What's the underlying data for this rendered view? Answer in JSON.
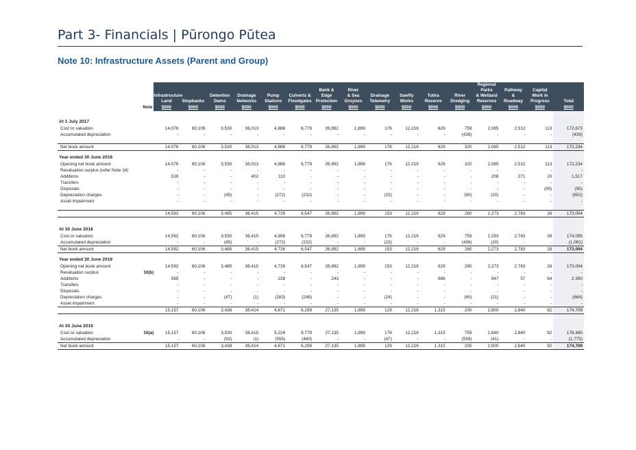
{
  "page": {
    "title": "Part 3- Financials | Pūrongo Pūtea",
    "note_title": "Note 10:  Infrastructure Assets (Parent and Group)"
  },
  "table": {
    "note_header": "Note",
    "columns": [
      {
        "lines": [
          "Infrastructure",
          "Land"
        ],
        "unit": "$000"
      },
      {
        "lines": [
          "Stopbanks"
        ],
        "unit": "$000"
      },
      {
        "lines": [
          "Detention",
          "Dams"
        ],
        "unit": "$000"
      },
      {
        "lines": [
          "Drainage",
          "Networks"
        ],
        "unit": "$000"
      },
      {
        "lines": [
          "Pump",
          "Stations"
        ],
        "unit": "$000"
      },
      {
        "lines": [
          "Culverts &",
          "Floodgates"
        ],
        "unit": "$000"
      },
      {
        "lines": [
          "Bank &",
          "Edge",
          "Protection"
        ],
        "unit": "$000"
      },
      {
        "lines": [
          "River",
          "& Sea",
          "Groynes"
        ],
        "unit": "$000"
      },
      {
        "lines": [
          "Drainage",
          "Telemetry"
        ],
        "unit": "$000"
      },
      {
        "lines": [
          "Sawfly",
          "Works"
        ],
        "unit": "$000"
      },
      {
        "lines": [
          "Tutira",
          "Reserve"
        ],
        "unit": "$000"
      },
      {
        "lines": [
          "River",
          "Dredging"
        ],
        "unit": "$000"
      },
      {
        "lines": [
          "Regional Parks",
          "& Wetland",
          "Reserves"
        ],
        "unit": "$000"
      },
      {
        "lines": [
          "Pathway",
          "&",
          "Roadway"
        ],
        "unit": "$000"
      },
      {
        "lines": [
          "Capital",
          "Work in",
          "Progress"
        ],
        "unit": "$000"
      },
      {
        "lines": [
          "Total"
        ],
        "unit": "$000"
      }
    ],
    "rows": [
      {
        "type": "section",
        "label": "At 1 July 2017"
      },
      {
        "type": "data",
        "label": "Cost or valuation",
        "note": "",
        "values": [
          "14,076",
          "60,106",
          "3,530",
          "36,013",
          "4,888",
          "6,779",
          "26,892",
          "1,899",
          "176",
          "12,216",
          "629",
          "759",
          "2,085",
          "2,512",
          "113",
          "172,673"
        ]
      },
      {
        "type": "data",
        "label": "Accumulated depreciation",
        "note": "",
        "values": [
          "-",
          "-",
          "-",
          "-",
          "-",
          "-",
          "-",
          "-",
          "-",
          "-",
          "-",
          "(439)",
          "-",
          "-",
          "-",
          "(439)"
        ]
      },
      {
        "type": "spacer"
      },
      {
        "type": "total",
        "label": "Net book amount",
        "note": "",
        "values": [
          "14,076",
          "60,106",
          "3,530",
          "36,013",
          "4,888",
          "6,779",
          "26,892",
          "1,899",
          "176",
          "12,216",
          "629",
          "320",
          "2,085",
          "2,512",
          "113",
          "172,234"
        ]
      },
      {
        "type": "section",
        "label": "Year ended 30 June 2018"
      },
      {
        "type": "data",
        "label": "Opening net book amount",
        "note": "",
        "values": [
          "14,076",
          "60,106",
          "3,530",
          "36,013",
          "4,888",
          "6,779",
          "26,892",
          "1,899",
          "176",
          "12,216",
          "629",
          "320",
          "2,085",
          "2,512",
          "113",
          "172,234"
        ]
      },
      {
        "type": "data",
        "label": "Revaluation surplus (refer Note 18)",
        "note": "",
        "values": [
          "-",
          "-",
          "-",
          "-",
          "-",
          "-",
          "-",
          "-",
          "-",
          "-",
          "-",
          "-",
          "-",
          "-",
          "-",
          "-"
        ]
      },
      {
        "type": "data",
        "label": "Additions",
        "note": "",
        "values": [
          "516",
          "-",
          "-",
          "402",
          "110",
          "-",
          "-",
          "-",
          "-",
          "-",
          "-",
          "-",
          "208",
          "271",
          "10",
          "1,517"
        ]
      },
      {
        "type": "data",
        "label": "Transfers",
        "note": "",
        "values": [
          "-",
          "-",
          "-",
          "-",
          "-",
          "-",
          "-",
          "-",
          "-",
          "-",
          "-",
          "-",
          "-",
          "-",
          "-",
          "-"
        ]
      },
      {
        "type": "data",
        "label": "Disposals",
        "note": "",
        "values": [
          "-",
          "-",
          "-",
          "-",
          "-",
          "-",
          "-",
          "-",
          "-",
          "-",
          "-",
          "-",
          "-",
          "-",
          "(95)",
          "(95)"
        ]
      },
      {
        "type": "data",
        "label": "Depreciation charges",
        "note": "",
        "values": [
          "-",
          "-",
          "(45)",
          "-",
          "(272)",
          "(232)",
          "-",
          "-",
          "(23)",
          "-",
          "-",
          "(60)",
          "(20)",
          "-",
          "-",
          "(652)"
        ]
      },
      {
        "type": "data",
        "label": "Asset impairment",
        "note": "",
        "values": [
          "-",
          "-",
          "-",
          "-",
          "-",
          "-",
          "-",
          "-",
          "-",
          "-",
          "-",
          "-",
          "-",
          "-",
          "-",
          "-"
        ]
      },
      {
        "type": "spacer"
      },
      {
        "type": "total",
        "label": "",
        "note": "",
        "values": [
          "14,592",
          "60,106",
          "3,485",
          "36,415",
          "4,726",
          "6,547",
          "26,892",
          "1,899",
          "153",
          "12,216",
          "629",
          "260",
          "2,273",
          "2,783",
          "28",
          "173,004"
        ]
      },
      {
        "type": "spacer"
      },
      {
        "type": "section",
        "label": "At 30 June 2018"
      },
      {
        "type": "data",
        "label": "Cost or valuation",
        "note": "",
        "values": [
          "14,592",
          "60,106",
          "3,530",
          "36,415",
          "4,998",
          "6,779",
          "26,892",
          "1,899",
          "176",
          "12,216",
          "629",
          "759",
          "2,293",
          "2,783",
          "28",
          "174,095"
        ]
      },
      {
        "type": "data",
        "label": "Accumulated depreciation",
        "note": "",
        "values": [
          "-",
          "-",
          "(45)",
          "-",
          "(272)",
          "(232)",
          "-",
          "-",
          "(23)",
          "-",
          "-",
          "(499)",
          "(20)",
          "-",
          "-",
          "(1,091)"
        ]
      },
      {
        "type": "total",
        "bold": true,
        "label": "Net book amount",
        "note": "",
        "values": [
          "14,592",
          "60,106",
          "3,485",
          "36,415",
          "4,726",
          "6,547",
          "26,892",
          "1,899",
          "153",
          "12,216",
          "629",
          "260",
          "2,273",
          "2,783",
          "28",
          "173,004"
        ]
      },
      {
        "type": "section",
        "label": "Year ended 30 June 2019"
      },
      {
        "type": "data",
        "label": "Opening net book amount",
        "note": "",
        "values": [
          "14,592",
          "60,106",
          "3,485",
          "36,415",
          "4,726",
          "6,547",
          "26,892",
          "1,899",
          "153",
          "12,216",
          "629",
          "260",
          "2,273",
          "2,783",
          "28",
          "173,004"
        ]
      },
      {
        "type": "data",
        "label": "Revaluation surplus",
        "note": "10(b)",
        "values": [
          "-",
          "-",
          "-",
          "-",
          "-",
          "-",
          "-",
          "-",
          "-",
          "-",
          "-",
          "-",
          "-",
          "-",
          "-",
          "-"
        ]
      },
      {
        "type": "data",
        "label": "Additions",
        "note": "",
        "values": [
          "565",
          "-",
          "-",
          "-",
          "228",
          "-",
          "243",
          "-",
          "-",
          "-",
          "686",
          "-",
          "547",
          "57",
          "64",
          "2,390"
        ]
      },
      {
        "type": "data",
        "label": "Transfers",
        "note": "",
        "values": [
          "-",
          "-",
          "-",
          "-",
          "-",
          "-",
          "-",
          "-",
          "-",
          "-",
          "-",
          "-",
          "-",
          "-",
          "-",
          "-"
        ]
      },
      {
        "type": "data",
        "label": "Disposals",
        "note": "",
        "values": [
          "-",
          "-",
          "-",
          "-",
          "-",
          "-",
          "-",
          "-",
          "-",
          "-",
          "-",
          "-",
          "-",
          "-",
          "-",
          "-"
        ]
      },
      {
        "type": "data",
        "label": "Depreciation charges",
        "note": "",
        "values": [
          "-",
          "-",
          "(47)",
          "(1)",
          "(283)",
          "(248)",
          "-",
          "-",
          "(24)",
          "-",
          "-",
          "(60)",
          "(21)",
          "-",
          "-",
          "(684)"
        ]
      },
      {
        "type": "data",
        "label": "Asset impairment",
        "note": "",
        "values": [
          "-",
          "-",
          "-",
          "-",
          "-",
          "-",
          "-",
          "-",
          "-",
          "-",
          "-",
          "-",
          "-",
          "-",
          "-",
          "-"
        ]
      },
      {
        "type": "total",
        "label": "",
        "note": "",
        "values": [
          "15,157",
          "60,106",
          "3,438",
          "36,414",
          "4,671",
          "6,299",
          "27,135",
          "1,899",
          "129",
          "12,216",
          "1,315",
          "200",
          "2,800",
          "2,840",
          "92",
          "174,709"
        ]
      },
      {
        "type": "spacer"
      },
      {
        "type": "section",
        "label": "At 30 June 2019"
      },
      {
        "type": "data",
        "label": "Cost or valuation",
        "note": "10(a)",
        "values": [
          "15,157",
          "60,106",
          "3,530",
          "36,415",
          "5,226",
          "6,779",
          "27,135",
          "1,899",
          "176",
          "12,216",
          "1,315",
          "759",
          "2,840",
          "2,840",
          "92",
          "176,485"
        ]
      },
      {
        "type": "data",
        "label": "Accumulated depreciation",
        "note": "",
        "values": [
          "-",
          "-",
          "(92)",
          "(1)",
          "(555)",
          "(480)",
          "-",
          "-",
          "(47)",
          "-",
          "-",
          "(559)",
          "(41)",
          "-",
          "-",
          "(1,775)"
        ]
      },
      {
        "type": "total",
        "bold": true,
        "label": "Net book amount",
        "note": "",
        "values": [
          "15,157",
          "60,106",
          "3,438",
          "36,414",
          "4,671",
          "6,299",
          "27,135",
          "1,899",
          "129",
          "12,216",
          "1,315",
          "200",
          "2,800",
          "2,840",
          "92",
          "174,709"
        ]
      }
    ]
  }
}
